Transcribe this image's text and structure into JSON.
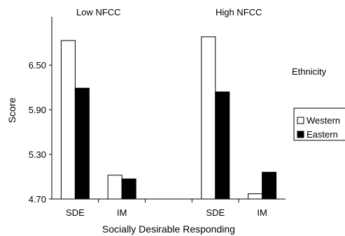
{
  "chart_data": {
    "type": "bar",
    "groups": [
      "Low NFCC",
      "High NFCC"
    ],
    "categories": [
      "SDE",
      "IM"
    ],
    "series": [
      {
        "name": "Western",
        "values": {
          "Low NFCC": [
            6.83,
            5.02
          ],
          "High NFCC": [
            6.88,
            4.77
          ]
        }
      },
      {
        "name": "Eastern",
        "values": {
          "Low NFCC": [
            6.19,
            4.97
          ],
          "High NFCC": [
            6.14,
            5.06
          ]
        }
      }
    ],
    "xlabel": "Socially Desirable Responding",
    "ylabel": "Score",
    "ylim": [
      4.7,
      7.15
    ],
    "yticks": [
      "4.70",
      "5.30",
      "5.90",
      "6.50"
    ],
    "legend": {
      "title": "Ethnicity",
      "position": "right"
    },
    "grid": false,
    "colors": {
      "Western": "#ffffff",
      "Eastern": "#000000",
      "outline": "#000000"
    }
  }
}
